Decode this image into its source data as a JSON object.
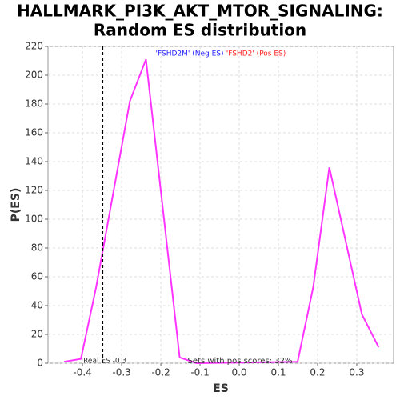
{
  "chart_data": {
    "type": "line",
    "title": [
      "HALLMARK_PI3K_AKT_MTOR_SIGNALING:",
      "Random ES distribution"
    ],
    "x_label": "ES",
    "y_label": "P(ES)",
    "series": [
      {
        "name": "P(ES)",
        "color": "#ff33ff",
        "x": [
          -0.447,
          -0.404,
          -0.365,
          -0.279,
          -0.238,
          -0.152,
          -0.109,
          0.149,
          0.189,
          0.23,
          0.313,
          0.356
        ],
        "values": [
          1,
          3,
          53,
          182,
          211,
          4,
          0,
          1,
          53,
          136,
          34,
          11
        ]
      }
    ],
    "xlim": [
      -0.488,
      0.394
    ],
    "ylim": [
      0,
      220
    ],
    "xticks": [
      -0.4,
      -0.3,
      -0.2,
      -0.1,
      {
        "value": 0,
        "label": "0.0"
      },
      0.1,
      0.2,
      0.3
    ],
    "yticks": [
      0,
      20,
      40,
      60,
      80,
      100,
      120,
      140,
      160,
      180,
      200,
      220
    ],
    "grid": true,
    "real_es": {
      "value": -0.349,
      "label": "Real ES -0.3"
    },
    "legend_neg": {
      "text": "'FSHD2M' (Neg ES)",
      "color": "#2222ff"
    },
    "legend_pos": {
      "text": "'FSHD2' (Pos ES)",
      "color": "#ff2222"
    },
    "footnote": "Sets with pos scores: 32%"
  }
}
